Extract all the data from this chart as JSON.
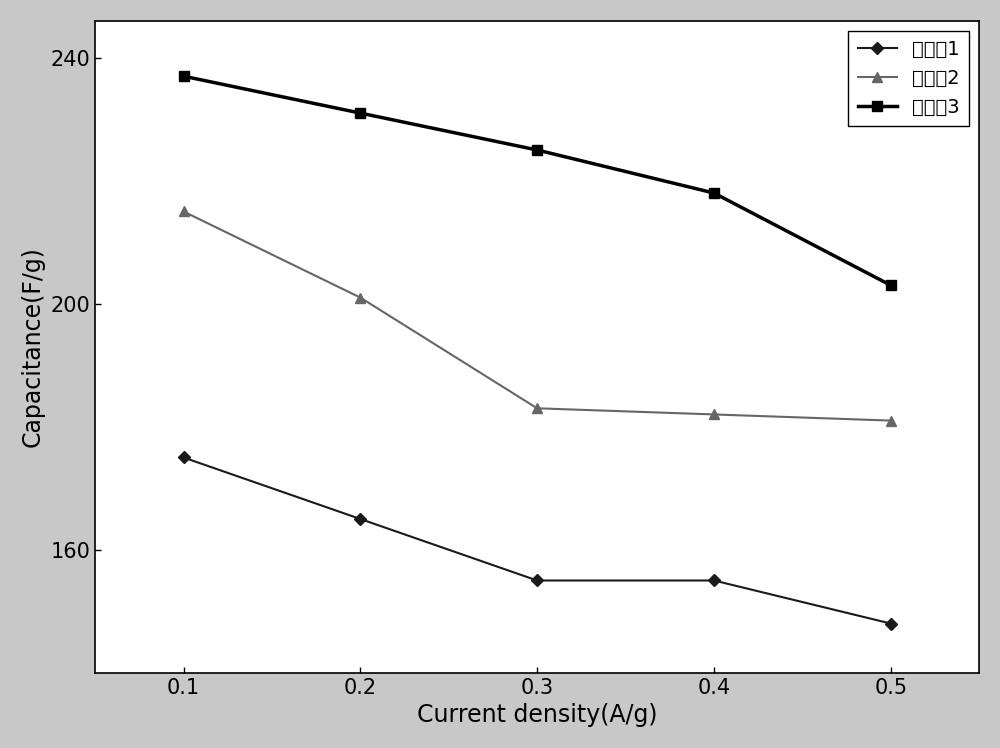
{
  "x": [
    0.1,
    0.2,
    0.3,
    0.4,
    0.5
  ],
  "series": [
    {
      "label": "实施入1",
      "y": [
        175,
        165,
        155,
        155,
        148
      ],
      "color": "#1a1a1a",
      "marker": "D",
      "linestyle": "-",
      "linewidth": 1.5,
      "markersize": 6,
      "zorder": 3
    },
    {
      "label": "实施入2",
      "y": [
        215,
        201,
        183,
        182,
        181
      ],
      "color": "#666666",
      "marker": "^",
      "linestyle": "-",
      "linewidth": 1.5,
      "markersize": 7,
      "zorder": 3
    },
    {
      "label": "实施入3",
      "y": [
        237,
        231,
        225,
        218,
        203
      ],
      "color": "#000000",
      "marker": "s",
      "linestyle": "-",
      "linewidth": 2.5,
      "markersize": 7,
      "zorder": 4
    }
  ],
  "xlabel": "Current density(A/g)",
  "ylabel": "Capacitance(F/g)",
  "xlim": [
    0.05,
    0.55
  ],
  "ylim": [
    140,
    246
  ],
  "xticks": [
    0.1,
    0.2,
    0.3,
    0.4,
    0.5
  ],
  "yticks": [
    160,
    200,
    240
  ],
  "legend_loc": "upper right",
  "xlabel_fontsize": 17,
  "ylabel_fontsize": 17,
  "tick_fontsize": 15,
  "legend_fontsize": 14,
  "background_color": "#ffffff",
  "figure_bg": "#c8c8c8"
}
